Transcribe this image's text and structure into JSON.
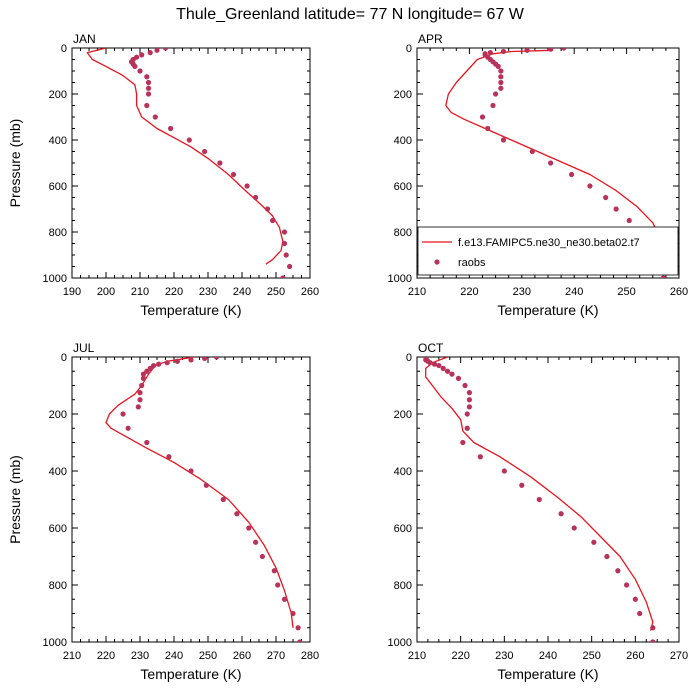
{
  "figure": {
    "title": "Thule_Greenland  latitude= 77 N longitude= 67 W"
  },
  "colors": {
    "model_line": "#e8151f",
    "raobs_marker": "#b8325a",
    "axis": "#000000"
  },
  "chart_data": [
    {
      "type": "line",
      "panel_label": "JAN",
      "xlabel": "Temperature (K)",
      "ylabel": "Pressure (mb)",
      "xlim": [
        190,
        260
      ],
      "ylim": [
        1000,
        0
      ],
      "xticks": [
        190,
        200,
        210,
        220,
        230,
        240,
        250,
        260
      ],
      "yticks": [
        0,
        200,
        400,
        600,
        800,
        1000
      ],
      "legend": false,
      "series": [
        {
          "name": "f.e13.FAMIPC5.ne30_ne30.beta02.t7",
          "kind": "line",
          "x": [
            200.0,
            194.5,
            196.0,
            200.0,
            205.0,
            208.5,
            209.0,
            209.0,
            210.5,
            215.0,
            220.0,
            225.0,
            230.0,
            236.0,
            241.0,
            245.5,
            249.0,
            251.0,
            252.0,
            251.5,
            249.0,
            247.0
          ],
          "y": [
            0,
            20,
            50,
            80,
            120,
            160,
            200,
            250,
            300,
            350,
            390,
            430,
            480,
            550,
            620,
            680,
            730,
            780,
            840,
            880,
            920,
            940
          ]
        },
        {
          "name": "raobs",
          "kind": "scatter",
          "x": [
            217.5,
            215.0,
            213.0,
            210.5,
            209.0,
            208.0,
            207.5,
            208.0,
            208.5,
            210.0,
            212.0,
            212.5,
            212.5,
            212.5,
            212.0,
            214.5,
            219.0,
            224.5,
            229.0,
            233.5,
            237.5,
            241.5,
            244.0,
            247.5,
            249.0,
            252.5,
            252.5,
            253.0,
            254.0,
            252.0
          ],
          "y": [
            0,
            10,
            20,
            30,
            40,
            50,
            60,
            70,
            80,
            100,
            125,
            150,
            175,
            200,
            250,
            300,
            350,
            400,
            450,
            500,
            550,
            600,
            650,
            700,
            750,
            800,
            850,
            900,
            950,
            1000
          ]
        }
      ]
    },
    {
      "type": "line",
      "panel_label": "APR",
      "xlabel": "Temperature (K)",
      "ylabel": "",
      "xlim": [
        210,
        260
      ],
      "ylim": [
        1000,
        0
      ],
      "xticks": [
        210,
        220,
        230,
        240,
        250,
        260
      ],
      "yticks": [
        0,
        200,
        400,
        600,
        800,
        1000
      ],
      "legend": true,
      "legend_position": "lower-right",
      "series": [
        {
          "name": "f.e13.FAMIPC5.ne30_ne30.beta02.t7",
          "kind": "line",
          "x": [
            236.0,
            228.0,
            224.5,
            221.5,
            219.5,
            217.5,
            216.0,
            215.5,
            216.5,
            219.0,
            223.0,
            228.0,
            233.0,
            238.0,
            243.0,
            248.0,
            252.0,
            255.0,
            256.5,
            257.0,
            256.5,
            255.0
          ],
          "y": [
            10,
            15,
            25,
            50,
            100,
            150,
            200,
            250,
            280,
            310,
            350,
            400,
            450,
            500,
            550,
            620,
            690,
            760,
            830,
            890,
            940,
            980
          ]
        },
        {
          "name": "raobs",
          "kind": "scatter",
          "x": [
            238.0,
            235.5,
            231.0,
            226.5,
            224.0,
            223.0,
            223.0,
            223.5,
            224.0,
            224.5,
            225.0,
            225.5,
            226.0,
            226.0,
            226.0,
            226.0,
            225.0,
            224.5,
            222.5,
            223.5,
            226.5,
            232.0,
            235.5,
            239.5,
            243.0,
            246.0,
            248.0,
            250.5,
            253.5,
            255.0,
            256.0,
            257.0,
            257.0
          ],
          "y": [
            0,
            5,
            10,
            15,
            20,
            25,
            30,
            40,
            50,
            60,
            70,
            80,
            100,
            125,
            150,
            175,
            200,
            250,
            300,
            350,
            400,
            450,
            500,
            550,
            600,
            650,
            700,
            750,
            800,
            850,
            900,
            950,
            1000
          ]
        }
      ]
    },
    {
      "type": "line",
      "panel_label": "JUL",
      "xlabel": "Temperature (K)",
      "ylabel": "Pressure (mb)",
      "xlim": [
        210,
        280
      ],
      "ylim": [
        1000,
        0
      ],
      "xticks": [
        210,
        220,
        230,
        240,
        250,
        260,
        270,
        280
      ],
      "yticks": [
        0,
        200,
        400,
        600,
        800,
        1000
      ],
      "legend": false,
      "series": [
        {
          "name": "f.e13.FAMIPC5.ne30_ne30.beta02.t7",
          "kind": "line",
          "x": [
            246.0,
            238.0,
            234.5,
            232.5,
            230.5,
            228.5,
            226.0,
            223.5,
            221.0,
            220.0,
            221.5,
            226.0,
            232.0,
            240.0,
            248.0,
            256.0,
            262.0,
            266.5,
            270.0,
            272.5,
            274.5,
            275.0
          ],
          "y": [
            0,
            15,
            30,
            60,
            100,
            130,
            150,
            170,
            200,
            230,
            250,
            280,
            320,
            370,
            430,
            500,
            580,
            660,
            740,
            820,
            900,
            950
          ]
        },
        {
          "name": "raobs",
          "kind": "scatter",
          "x": [
            252.5,
            249.0,
            245.0,
            241.0,
            238.0,
            235.5,
            234.0,
            233.0,
            232.0,
            231.0,
            231.0,
            230.5,
            230.0,
            230.0,
            229.5,
            225.0,
            226.5,
            232.0,
            238.5,
            245.0,
            249.5,
            254.5,
            258.5,
            262.0,
            264.0,
            266.0,
            269.5,
            270.5,
            272.5,
            275.0,
            276.5,
            277.0
          ],
          "y": [
            0,
            5,
            10,
            15,
            20,
            25,
            30,
            40,
            50,
            60,
            75,
            100,
            125,
            150,
            175,
            200,
            250,
            300,
            350,
            400,
            450,
            500,
            550,
            600,
            650,
            700,
            750,
            800,
            850,
            900,
            950,
            1000
          ]
        }
      ]
    },
    {
      "type": "line",
      "panel_label": "OCT",
      "xlabel": "Temperature (K)",
      "ylabel": "",
      "xlim": [
        210,
        270
      ],
      "ylim": [
        1000,
        0
      ],
      "xticks": [
        210,
        220,
        230,
        240,
        250,
        260,
        270
      ],
      "yticks": [
        0,
        200,
        400,
        600,
        800,
        1000
      ],
      "legend": false,
      "series": [
        {
          "name": "f.e13.FAMIPC5.ne30_ne30.beta02.t7",
          "kind": "line",
          "x": [
            217.0,
            213.5,
            212.0,
            212.0,
            213.5,
            215.5,
            218.0,
            220.0,
            220.5,
            223.0,
            229.0,
            236.0,
            242.0,
            247.5,
            252.0,
            256.5,
            260.0,
            262.5,
            264.0,
            263.5
          ],
          "y": [
            0,
            20,
            40,
            70,
            100,
            140,
            180,
            220,
            260,
            300,
            350,
            420,
            490,
            560,
            630,
            700,
            780,
            860,
            930,
            960
          ]
        },
        {
          "name": "raobs",
          "kind": "scatter",
          "x": [
            212.0,
            212.0,
            212.5,
            213.0,
            214.0,
            215.0,
            216.0,
            217.0,
            218.0,
            219.5,
            221.0,
            222.0,
            222.0,
            222.0,
            221.5,
            221.5,
            220.5,
            224.5,
            230.0,
            234.0,
            238.0,
            243.0,
            246.0,
            250.5,
            253.5,
            256.0,
            258.0,
            260.0,
            261.0,
            264.0,
            264.0,
            264.0
          ],
          "y": [
            0,
            10,
            15,
            20,
            25,
            30,
            40,
            50,
            60,
            75,
            100,
            125,
            150,
            175,
            200,
            250,
            300,
            350,
            400,
            450,
            500,
            550,
            600,
            650,
            700,
            750,
            800,
            850,
            900,
            950,
            1000,
            1000
          ]
        }
      ]
    }
  ]
}
